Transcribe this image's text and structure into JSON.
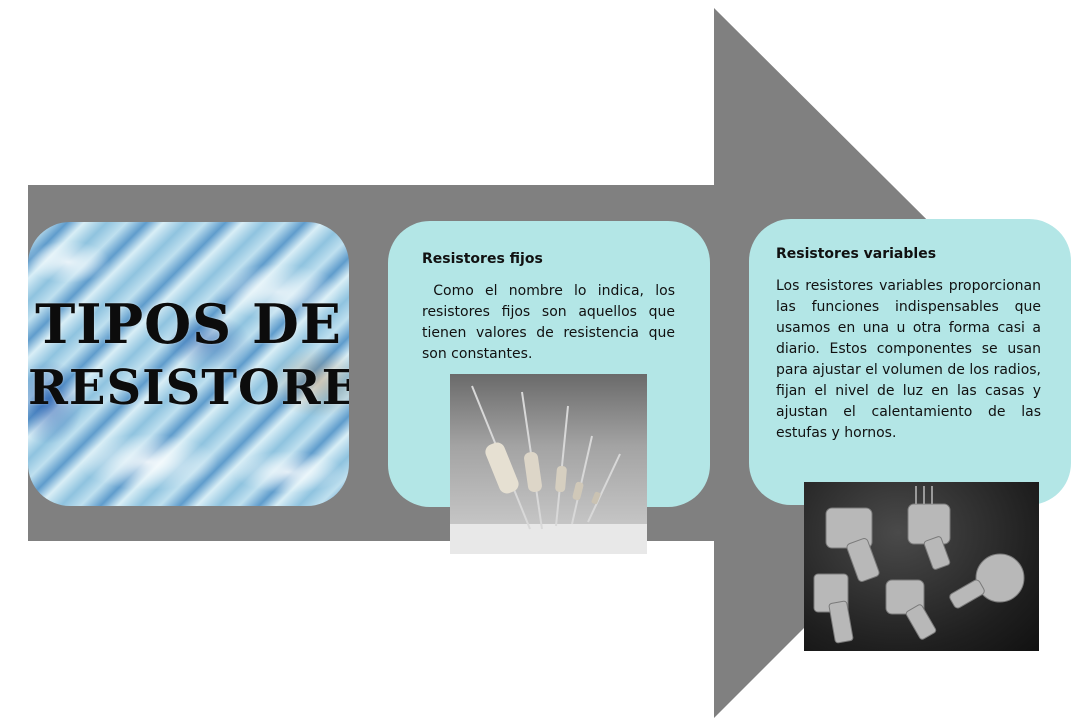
{
  "title_card": {
    "line1": "Tipos de",
    "line2": "resistores"
  },
  "fixed_card": {
    "heading": "Resistores fijos",
    "body": " Como el nombre lo indica, los resistores fijos son aquellos que tienen valores de resistencia que son constantes."
  },
  "variable_card": {
    "heading": "Resistores variables",
    "body": "Los resistores variables proporcionan las funciones indispensables que usamos en una u otra forma casi a diario. Estos componentes se usan para ajustar el volumen de los radios, fijan el nivel de luz en las casas y ajustan el calentamiento de las estufas y hornos."
  },
  "colors": {
    "arrow": "#808080",
    "card": "#b3e6e6",
    "text": "#111111"
  }
}
